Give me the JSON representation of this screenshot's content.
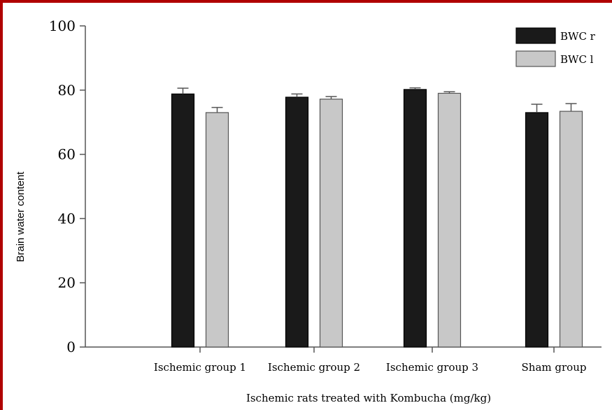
{
  "chart_data": {
    "type": "bar",
    "title": "",
    "xlabel": "Ischemic rats treated with Kombucha (mg/kg)",
    "ylabel": "Brain water content",
    "ylim": [
      0,
      100
    ],
    "yticks": [
      "0",
      "20",
      "40",
      "60",
      "80",
      "100"
    ],
    "categories": [
      "Ischemic group 1",
      "Ischemic group 2",
      "Ischemic group 3",
      "Sham group"
    ],
    "series": [
      {
        "name": "BWC r",
        "values": [
          78.8,
          77.8,
          80.2,
          73.0
        ],
        "errors": [
          1.8,
          1.0,
          0.5,
          2.6
        ],
        "color": "#1a1a1a"
      },
      {
        "name": "BWC l",
        "values": [
          73.0,
          77.2,
          79.0,
          73.4
        ],
        "errors": [
          1.6,
          0.8,
          0.5,
          2.4
        ],
        "color": "#c8c8c8"
      }
    ],
    "legend": "top-right",
    "grid": false
  }
}
